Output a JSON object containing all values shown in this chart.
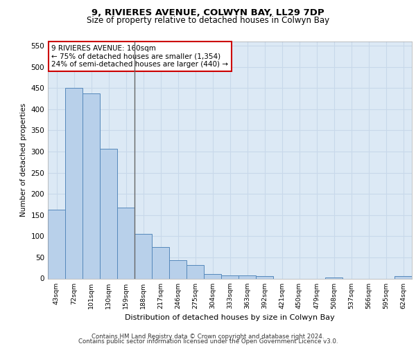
{
  "title_line1": "9, RIVIERES AVENUE, COLWYN BAY, LL29 7DP",
  "title_line2": "Size of property relative to detached houses in Colwyn Bay",
  "xlabel": "Distribution of detached houses by size in Colwyn Bay",
  "ylabel": "Number of detached properties",
  "categories": [
    "43sqm",
    "72sqm",
    "101sqm",
    "130sqm",
    "159sqm",
    "188sqm",
    "217sqm",
    "246sqm",
    "275sqm",
    "304sqm",
    "333sqm",
    "363sqm",
    "392sqm",
    "421sqm",
    "450sqm",
    "479sqm",
    "508sqm",
    "537sqm",
    "566sqm",
    "595sqm",
    "624sqm"
  ],
  "values": [
    163,
    450,
    437,
    307,
    167,
    105,
    74,
    44,
    32,
    10,
    8,
    8,
    5,
    0,
    0,
    0,
    2,
    0,
    0,
    0,
    5
  ],
  "bar_color": "#b8d0ea",
  "bar_edge_color": "#5588bb",
  "vline_x": 4.5,
  "vline_color": "#666666",
  "annotation_text": "9 RIVIERES AVENUE: 160sqm\n← 75% of detached houses are smaller (1,354)\n24% of semi-detached houses are larger (440) →",
  "annotation_box_color": "#ffffff",
  "annotation_box_edge_color": "#cc0000",
  "ylim": [
    0,
    560
  ],
  "yticks": [
    0,
    50,
    100,
    150,
    200,
    250,
    300,
    350,
    400,
    450,
    500,
    550
  ],
  "footer_line1": "Contains HM Land Registry data © Crown copyright and database right 2024.",
  "footer_line2": "Contains public sector information licensed under the Open Government Licence v3.0.",
  "grid_color": "#c8d8ea",
  "background_color": "#dce9f5"
}
